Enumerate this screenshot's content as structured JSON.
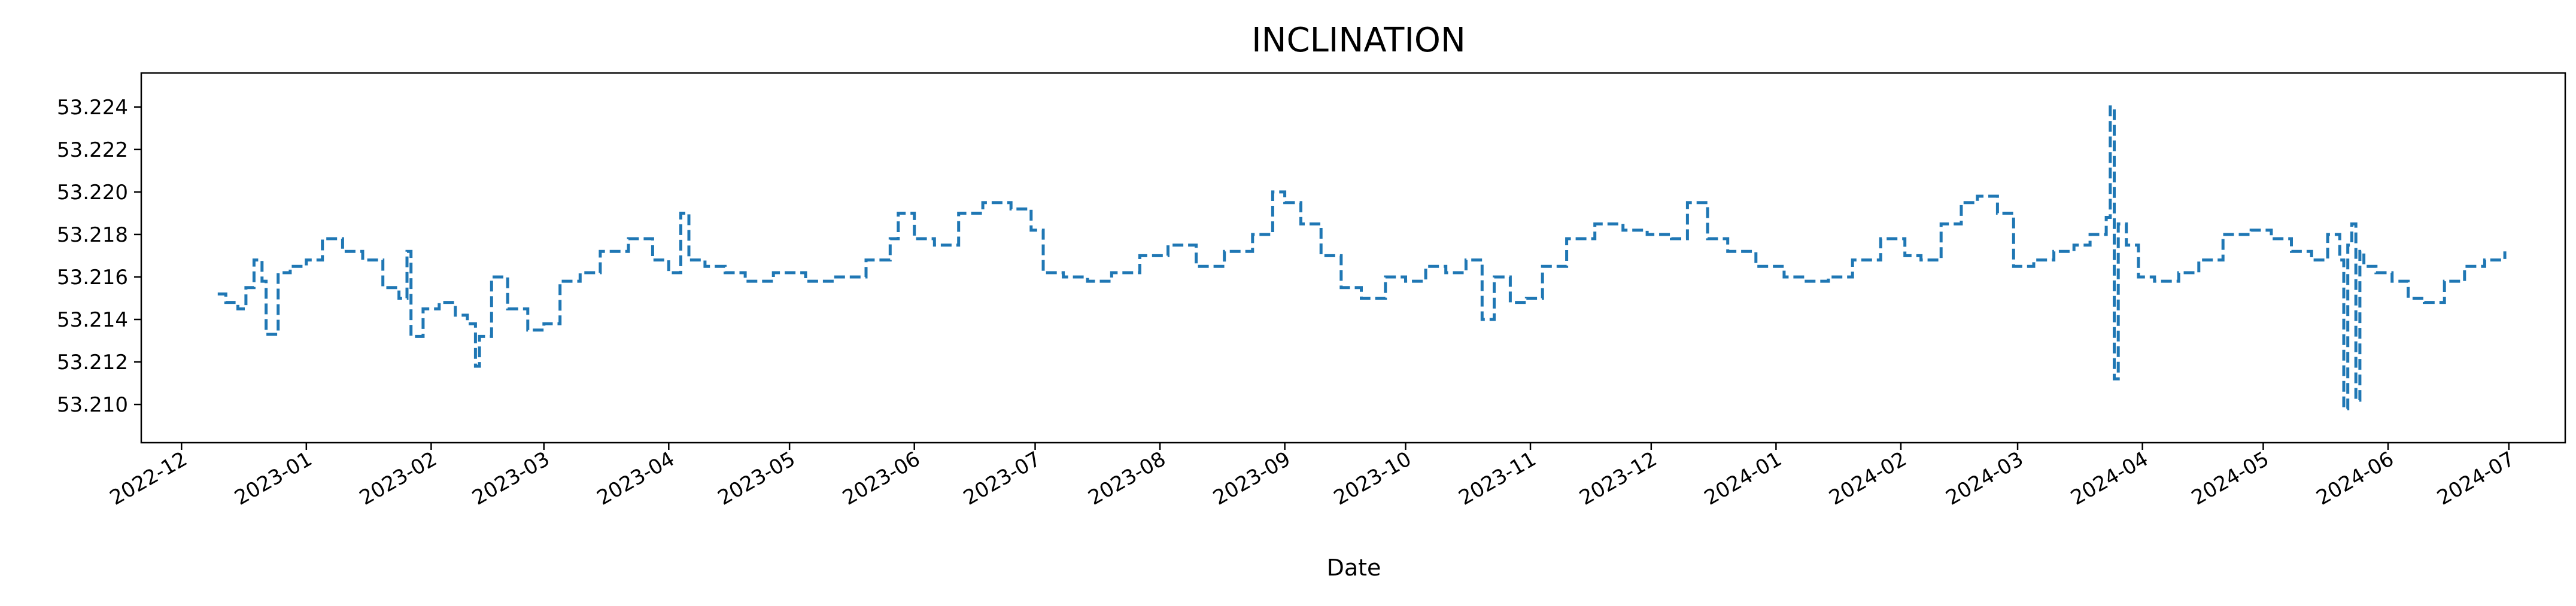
{
  "chart_data": {
    "type": "line",
    "title": "INCLINATION",
    "xlabel": "Date",
    "ylabel": "",
    "x_type": "date",
    "xlim": [
      "2022-11-21",
      "2024-07-15"
    ],
    "ylim": [
      53.2082,
      53.2256
    ],
    "grid": false,
    "line_style": "dashed",
    "series_color": "#1f77b4",
    "x_ticks": [
      "2022-12",
      "2023-01",
      "2023-02",
      "2023-03",
      "2023-04",
      "2023-05",
      "2023-06",
      "2023-07",
      "2023-08",
      "2023-09",
      "2023-10",
      "2023-11",
      "2023-12",
      "2024-01",
      "2024-02",
      "2024-03",
      "2024-04",
      "2024-05",
      "2024-06",
      "2024-07"
    ],
    "y_ticks": [
      "53.210",
      "53.212",
      "53.214",
      "53.216",
      "53.218",
      "53.220",
      "53.222",
      "53.224"
    ],
    "series": [
      {
        "x": [
          "2022-12-10",
          "2022-12-12",
          "2022-12-15",
          "2022-12-17",
          "2022-12-19",
          "2022-12-21",
          "2022-12-22",
          "2022-12-25",
          "2022-12-28",
          "2023-01-01",
          "2023-01-05",
          "2023-01-10",
          "2023-01-15",
          "2023-01-20",
          "2023-01-24",
          "2023-01-26",
          "2023-01-27",
          "2023-01-30",
          "2023-02-03",
          "2023-02-07",
          "2023-02-10",
          "2023-02-12",
          "2023-02-13",
          "2023-02-16",
          "2023-02-20",
          "2023-02-25",
          "2023-03-01",
          "2023-03-05",
          "2023-03-10",
          "2023-03-15",
          "2023-03-22",
          "2023-03-28",
          "2023-04-01",
          "2023-04-04",
          "2023-04-06",
          "2023-04-10",
          "2023-04-15",
          "2023-04-20",
          "2023-04-27",
          "2023-05-05",
          "2023-05-12",
          "2023-05-20",
          "2023-05-26",
          "2023-05-28",
          "2023-06-01",
          "2023-06-06",
          "2023-06-12",
          "2023-06-18",
          "2023-06-25",
          "2023-06-30",
          "2023-07-03",
          "2023-07-08",
          "2023-07-14",
          "2023-07-20",
          "2023-07-27",
          "2023-08-03",
          "2023-08-10",
          "2023-08-17",
          "2023-08-24",
          "2023-08-29",
          "2023-09-01",
          "2023-09-05",
          "2023-09-10",
          "2023-09-15",
          "2023-09-20",
          "2023-09-26",
          "2023-10-01",
          "2023-10-06",
          "2023-10-11",
          "2023-10-16",
          "2023-10-20",
          "2023-10-23",
          "2023-10-27",
          "2023-10-31",
          "2023-11-04",
          "2023-11-10",
          "2023-11-17",
          "2023-11-24",
          "2023-11-30",
          "2023-12-06",
          "2023-12-10",
          "2023-12-15",
          "2023-12-20",
          "2023-12-27",
          "2024-01-03",
          "2024-01-08",
          "2024-01-14",
          "2024-01-20",
          "2024-01-27",
          "2024-02-02",
          "2024-02-06",
          "2024-02-11",
          "2024-02-16",
          "2024-02-20",
          "2024-02-25",
          "2024-02-29",
          "2024-03-05",
          "2024-03-10",
          "2024-03-15",
          "2024-03-19",
          "2024-03-23",
          "2024-03-24",
          "2024-03-25",
          "2024-03-26",
          "2024-03-28",
          "2024-03-31",
          "2024-04-04",
          "2024-04-10",
          "2024-04-15",
          "2024-04-21",
          "2024-04-28",
          "2024-05-03",
          "2024-05-08",
          "2024-05-13",
          "2024-05-17",
          "2024-05-20",
          "2024-05-21",
          "2024-05-22",
          "2024-05-23",
          "2024-05-24",
          "2024-05-25",
          "2024-05-26",
          "2024-05-29",
          "2024-06-02",
          "2024-06-06",
          "2024-06-10",
          "2024-06-15",
          "2024-06-20",
          "2024-06-25",
          "2024-06-30"
        ],
        "y": [
          53.2152,
          53.2148,
          53.2145,
          53.2155,
          53.2168,
          53.2158,
          53.2133,
          53.2162,
          53.2165,
          53.2168,
          53.2178,
          53.2172,
          53.2168,
          53.2155,
          53.215,
          53.2172,
          53.2132,
          53.2145,
          53.2148,
          53.2142,
          53.2138,
          53.2118,
          53.2132,
          53.216,
          53.2145,
          53.2135,
          53.2138,
          53.2158,
          53.2162,
          53.2172,
          53.2178,
          53.2168,
          53.2162,
          53.219,
          53.2168,
          53.2165,
          53.2162,
          53.2158,
          53.2162,
          53.2158,
          53.216,
          53.2168,
          53.2178,
          53.219,
          53.2178,
          53.2175,
          53.219,
          53.2195,
          53.2192,
          53.2182,
          53.2162,
          53.216,
          53.2158,
          53.2162,
          53.217,
          53.2175,
          53.2165,
          53.2172,
          53.218,
          53.22,
          53.2195,
          53.2185,
          53.217,
          53.2155,
          53.215,
          53.216,
          53.2158,
          53.2165,
          53.2162,
          53.2168,
          53.214,
          53.216,
          53.2148,
          53.215,
          53.2165,
          53.2178,
          53.2185,
          53.2182,
          53.218,
          53.2178,
          53.2195,
          53.2178,
          53.2172,
          53.2165,
          53.216,
          53.2158,
          53.216,
          53.2168,
          53.2178,
          53.217,
          53.2168,
          53.2185,
          53.2195,
          53.2198,
          53.219,
          53.2165,
          53.2168,
          53.2172,
          53.2175,
          53.218,
          53.2188,
          53.224,
          53.2112,
          53.2185,
          53.2175,
          53.216,
          53.2158,
          53.2162,
          53.2168,
          53.218,
          53.2182,
          53.2178,
          53.2172,
          53.2168,
          53.218,
          53.2168,
          53.2098,
          53.2175,
          53.2185,
          53.2102,
          53.2172,
          53.2165,
          53.2162,
          53.2158,
          53.215,
          53.2148,
          53.2158,
          53.2165,
          53.2168,
          53.2172
        ]
      }
    ]
  }
}
